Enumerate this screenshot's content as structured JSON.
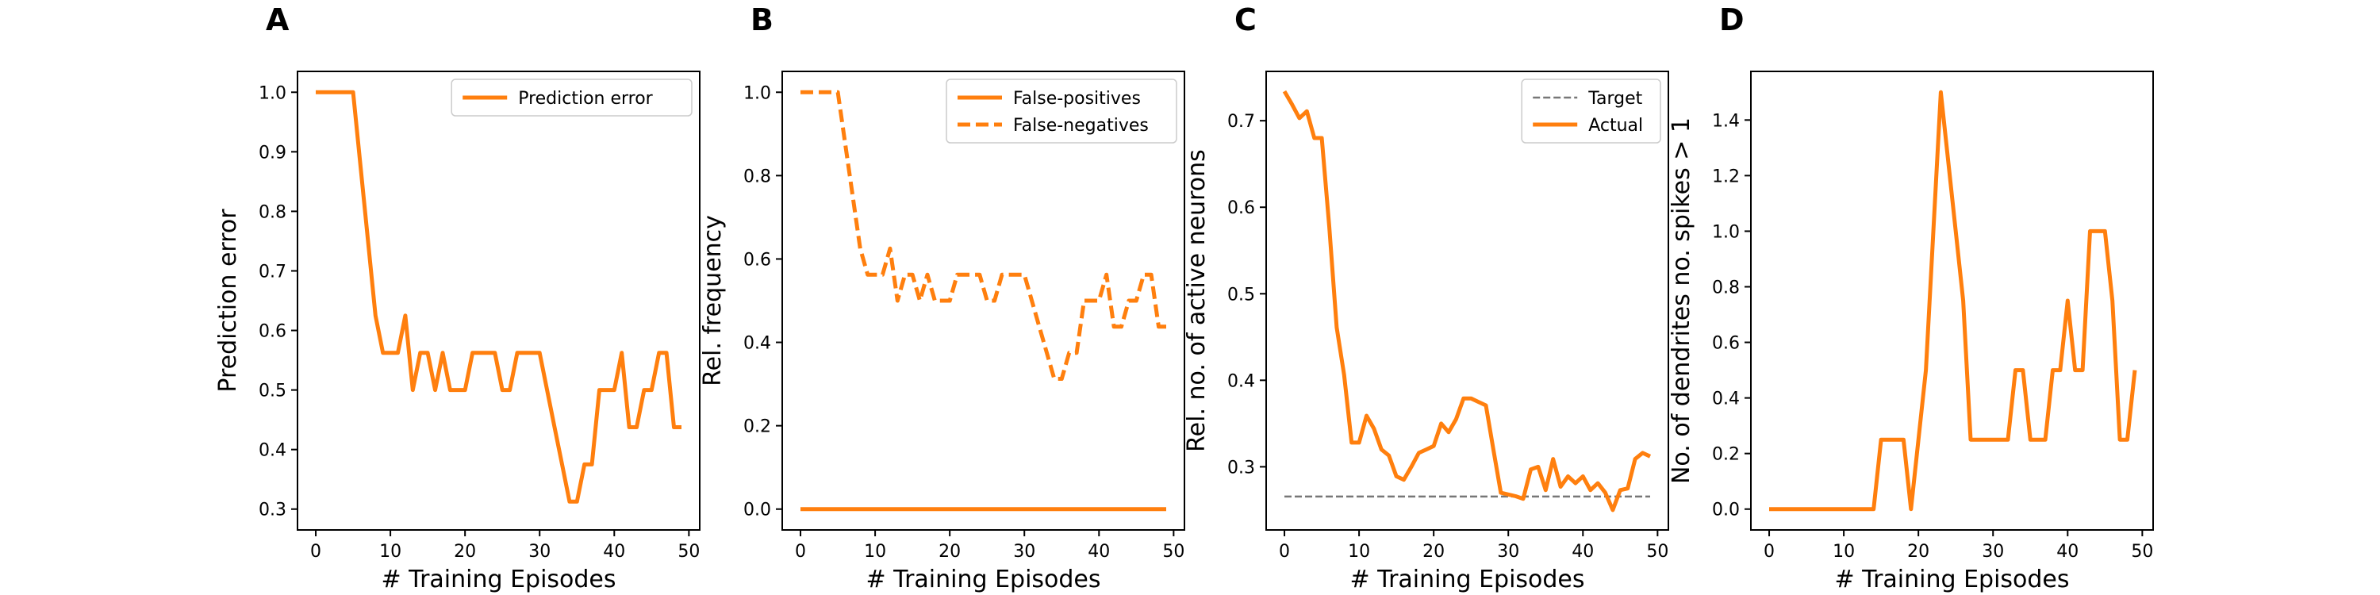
{
  "figure": {
    "panels": [
      "A",
      "B",
      "C",
      "D"
    ]
  },
  "colors": {
    "orange": "#ff7f0e",
    "target": "#777777",
    "axes": "#000000"
  },
  "chart_data": [
    {
      "type": "line",
      "panel_label": "A",
      "xlabel": "# Training Episodes",
      "ylabel": "Prediction error",
      "xlim": [
        -2.45,
        51.45
      ],
      "ylim": [
        0.265,
        1.035
      ],
      "xticks": [
        0,
        10,
        20,
        30,
        40,
        50
      ],
      "yticks": [
        0.3,
        0.4,
        0.5,
        0.6,
        0.7,
        0.8,
        0.9,
        1.0
      ],
      "ytick_labels": [
        "0.3",
        "0.4",
        "0.5",
        "0.6",
        "0.7",
        "0.8",
        "0.9",
        "1.0"
      ],
      "legend_position": "upper right",
      "series": [
        {
          "name": "Prediction error",
          "color": "#ff7f0e",
          "dash": "solid",
          "x": [
            0,
            1,
            2,
            3,
            4,
            5,
            6,
            7,
            8,
            9,
            10,
            11,
            12,
            13,
            14,
            15,
            16,
            17,
            18,
            19,
            20,
            21,
            22,
            23,
            24,
            25,
            26,
            27,
            28,
            29,
            30,
            31,
            32,
            33,
            34,
            35,
            36,
            37,
            38,
            39,
            40,
            41,
            42,
            43,
            44,
            45,
            46,
            47,
            48,
            49
          ],
          "y": [
            1.0,
            1.0,
            1.0,
            1.0,
            1.0,
            1.0,
            0.875,
            0.75,
            0.625,
            0.5625,
            0.5625,
            0.5625,
            0.625,
            0.5,
            0.5625,
            0.5625,
            0.5,
            0.5625,
            0.5,
            0.5,
            0.5,
            0.5625,
            0.5625,
            0.5625,
            0.5625,
            0.5,
            0.5,
            0.5625,
            0.5625,
            0.5625,
            0.5625,
            0.5,
            0.4375,
            0.375,
            0.3125,
            0.3125,
            0.375,
            0.375,
            0.5,
            0.5,
            0.5,
            0.5625,
            0.4375,
            0.4375,
            0.5,
            0.5,
            0.5625,
            0.5625,
            0.4375,
            0.4375
          ]
        }
      ]
    },
    {
      "type": "line",
      "panel_label": "B",
      "xlabel": "# Training Episodes",
      "ylabel": "Rel. frequency",
      "xlim": [
        -2.45,
        51.45
      ],
      "ylim": [
        -0.05,
        1.05
      ],
      "xticks": [
        0,
        10,
        20,
        30,
        40,
        50
      ],
      "yticks": [
        0.0,
        0.2,
        0.4,
        0.6,
        0.8,
        1.0
      ],
      "ytick_labels": [
        "0.0",
        "0.2",
        "0.4",
        "0.6",
        "0.8",
        "1.0"
      ],
      "legend_position": "upper right",
      "series": [
        {
          "name": "False-positives",
          "color": "#ff7f0e",
          "dash": "solid",
          "x": [
            0,
            49
          ],
          "y": [
            0.0,
            0.0
          ]
        },
        {
          "name": "False-negatives",
          "color": "#ff7f0e",
          "dash": "dashed",
          "x": [
            0,
            1,
            2,
            3,
            4,
            5,
            6,
            7,
            8,
            9,
            10,
            11,
            12,
            13,
            14,
            15,
            16,
            17,
            18,
            19,
            20,
            21,
            22,
            23,
            24,
            25,
            26,
            27,
            28,
            29,
            30,
            31,
            32,
            33,
            34,
            35,
            36,
            37,
            38,
            39,
            40,
            41,
            42,
            43,
            44,
            45,
            46,
            47,
            48,
            49
          ],
          "y": [
            1.0,
            1.0,
            1.0,
            1.0,
            1.0,
            1.0,
            0.875,
            0.75,
            0.625,
            0.5625,
            0.5625,
            0.5625,
            0.625,
            0.5,
            0.5625,
            0.5625,
            0.5,
            0.5625,
            0.5,
            0.5,
            0.5,
            0.5625,
            0.5625,
            0.5625,
            0.5625,
            0.5,
            0.5,
            0.5625,
            0.5625,
            0.5625,
            0.5625,
            0.5,
            0.4375,
            0.375,
            0.3125,
            0.3125,
            0.375,
            0.375,
            0.5,
            0.5,
            0.5,
            0.5625,
            0.4375,
            0.4375,
            0.5,
            0.5,
            0.5625,
            0.5625,
            0.4375,
            0.4375
          ]
        }
      ]
    },
    {
      "type": "line",
      "panel_label": "C",
      "xlabel": "# Training Episodes",
      "ylabel": "Rel. no. of active neurons",
      "xlim": [
        -2.45,
        51.45
      ],
      "ylim": [
        0.227,
        0.757
      ],
      "xticks": [
        0,
        10,
        20,
        30,
        40,
        50
      ],
      "yticks": [
        0.3,
        0.4,
        0.5,
        0.6,
        0.7
      ],
      "ytick_labels": [
        "0.3",
        "0.4",
        "0.5",
        "0.6",
        "0.7"
      ],
      "legend_position": "upper right",
      "series": [
        {
          "name": "Target",
          "color": "#777777",
          "dash": "dashed",
          "x": [
            0,
            49
          ],
          "y": [
            0.2656,
            0.2656
          ]
        },
        {
          "name": "Actual",
          "color": "#ff7f0e",
          "dash": "solid",
          "x": [
            0,
            1,
            2,
            3,
            4,
            5,
            6,
            7,
            8,
            9,
            10,
            11,
            12,
            13,
            14,
            15,
            16,
            17,
            18,
            19,
            20,
            21,
            22,
            23,
            24,
            25,
            26,
            27,
            28,
            29,
            30,
            31,
            32,
            33,
            34,
            35,
            36,
            37,
            38,
            39,
            40,
            41,
            42,
            43,
            44,
            45,
            46,
            47,
            48,
            49
          ],
          "y": [
            0.734,
            0.719,
            0.703,
            0.711,
            0.68,
            0.68,
            0.578,
            0.461,
            0.406,
            0.328,
            0.328,
            0.359,
            0.344,
            0.32,
            0.313,
            0.289,
            0.285,
            0.3,
            0.316,
            0.32,
            0.324,
            0.35,
            0.34,
            0.355,
            0.379,
            0.379,
            0.375,
            0.371,
            0.32,
            0.27,
            0.268,
            0.266,
            0.263,
            0.297,
            0.3,
            0.273,
            0.309,
            0.277,
            0.289,
            0.281,
            0.289,
            0.273,
            0.281,
            0.27,
            0.25,
            0.273,
            0.275,
            0.309,
            0.316,
            0.312
          ]
        }
      ]
    },
    {
      "type": "line",
      "panel_label": "D",
      "xlabel": "# Training Episodes",
      "ylabel": "No. of dendrites no. spikes > 1",
      "xlim": [
        -2.45,
        51.45
      ],
      "ylim": [
        -0.075,
        1.575
      ],
      "xticks": [
        0,
        10,
        20,
        30,
        40,
        50
      ],
      "yticks": [
        0.0,
        0.2,
        0.4,
        0.6,
        0.8,
        1.0,
        1.2,
        1.4
      ],
      "ytick_labels": [
        "0.0",
        "0.2",
        "0.4",
        "0.6",
        "0.8",
        "1.0",
        "1.2",
        "1.4"
      ],
      "legend_position": "none",
      "series": [
        {
          "color": "#ff7f0e",
          "dash": "solid",
          "x": [
            0,
            1,
            2,
            3,
            4,
            5,
            6,
            7,
            8,
            9,
            10,
            11,
            12,
            13,
            14,
            15,
            16,
            17,
            18,
            19,
            20,
            21,
            22,
            23,
            24,
            25,
            26,
            27,
            28,
            29,
            30,
            31,
            32,
            33,
            34,
            35,
            36,
            37,
            38,
            39,
            40,
            41,
            42,
            43,
            44,
            45,
            46,
            47,
            48,
            49
          ],
          "y": [
            0,
            0,
            0,
            0,
            0,
            0,
            0,
            0,
            0,
            0,
            0,
            0,
            0,
            0,
            0,
            0.25,
            0.25,
            0.25,
            0.25,
            0,
            0.25,
            0.5,
            1.0,
            1.5,
            1.25,
            1.0,
            0.75,
            0.25,
            0.25,
            0.25,
            0.25,
            0.25,
            0.25,
            0.5,
            0.5,
            0.25,
            0.25,
            0.25,
            0.5,
            0.5,
            0.75,
            0.5,
            0.5,
            1.0,
            1.0,
            1.0,
            0.75,
            0.25,
            0.25,
            0.5
          ]
        }
      ]
    }
  ]
}
